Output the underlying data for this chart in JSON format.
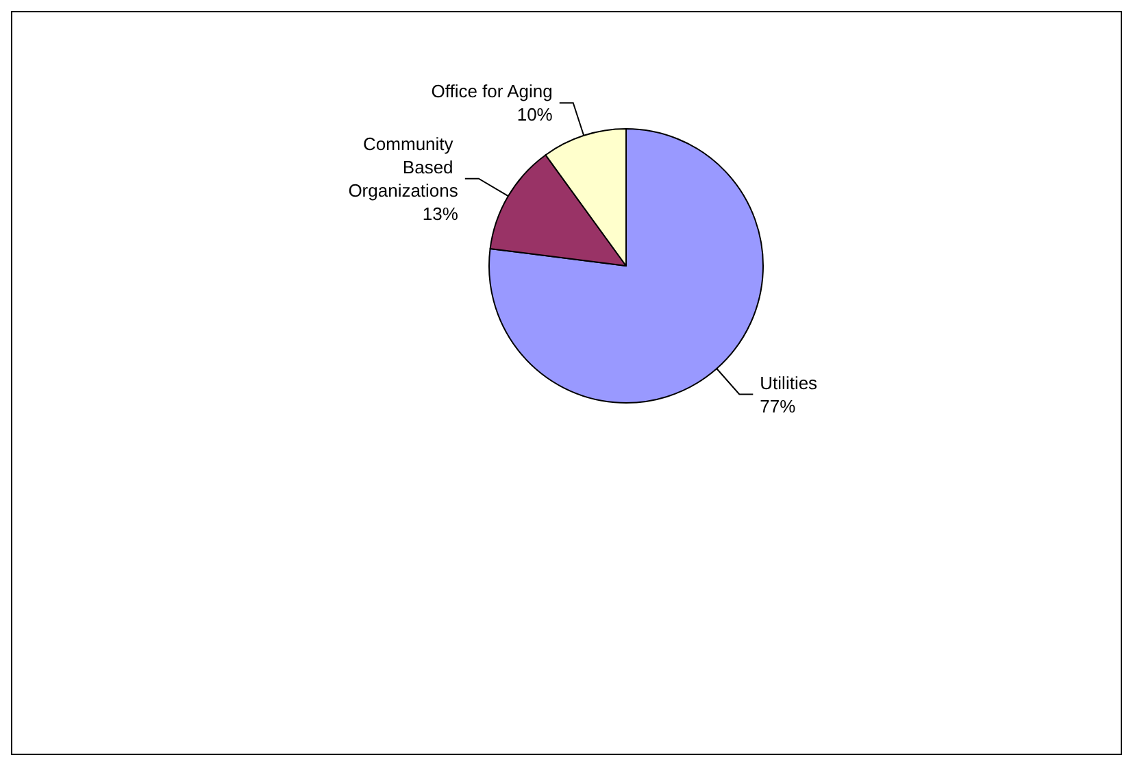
{
  "chart_data": {
    "type": "pie",
    "categories": [
      "Utilities",
      "Community Based Organizations",
      "Office for Aging"
    ],
    "values": [
      77,
      13,
      10
    ],
    "colors": [
      "#9999ff",
      "#993366",
      "#ffffcc"
    ],
    "value_labels": [
      "77%",
      "13%",
      "10%"
    ],
    "legend": false
  }
}
